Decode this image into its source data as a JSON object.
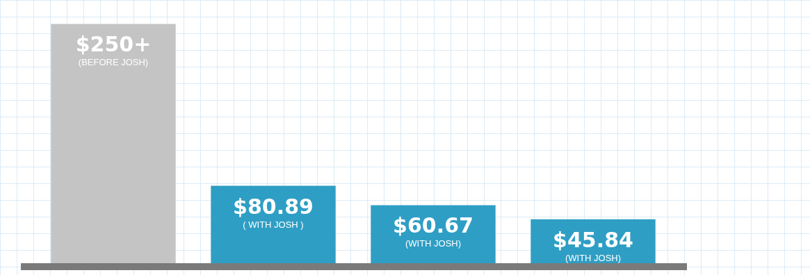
{
  "chart_data": {
    "type": "bar",
    "categories": [
      "(BEFORE JOSH)",
      "( WITH JOSH )",
      "(WITH JOSH)",
      "(WITH JOSH)"
    ],
    "values": [
      250,
      80.89,
      60.67,
      45.84
    ],
    "colors": [
      "#c4c4c4",
      "#2f9ec4",
      "#2f9ec4",
      "#2f9ec4"
    ],
    "value_labels": [
      "$250+",
      "$80.89",
      "$60.67",
      "$45.84"
    ],
    "ylim": [
      0,
      275
    ]
  }
}
